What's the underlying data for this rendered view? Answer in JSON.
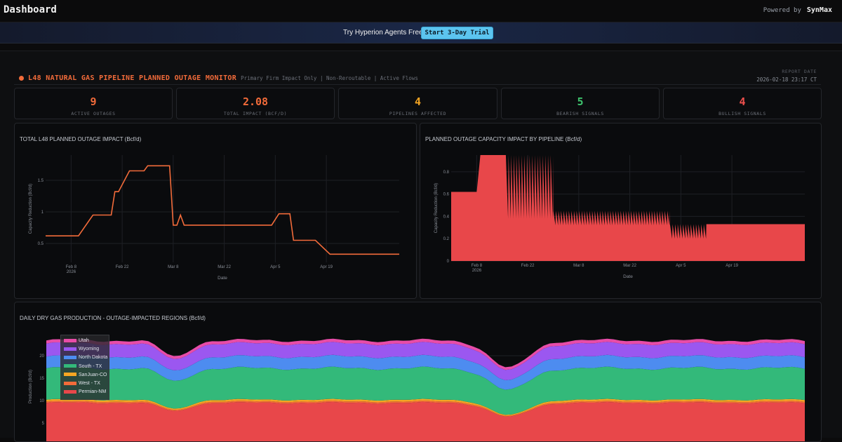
{
  "header": {
    "title": "Dashboard",
    "powered_by": "Powered by",
    "brand": "SynMax"
  },
  "banner": {
    "text": "Try Hyperion Agents Free",
    "button_label": "Start 3-Day Trial"
  },
  "monitor": {
    "title": "L48 NATURAL GAS PIPELINE PLANNED OUTAGE MONITOR",
    "subtitle": "Primary Firm Impact Only | Non-Reroutable | Active Flows",
    "report_date_label": "REPORT DATE",
    "report_date": "2026-02-18 23:17 CT"
  },
  "stats": [
    {
      "value": "9",
      "label": "ACTIVE OUTAGES",
      "color": "#f26b3a"
    },
    {
      "value": "2.08",
      "label": "TOTAL IMPACT (BCF/D)",
      "color": "#f26b3a"
    },
    {
      "value": "4",
      "label": "PIPELINES AFFECTED",
      "color": "#f5a623"
    },
    {
      "value": "5",
      "label": "BEARISH SIGNALS",
      "color": "#3ec46d"
    },
    {
      "value": "4",
      "label": "BULLISH SIGNALS",
      "color": "#f0504d"
    }
  ],
  "colors": {
    "line": "#f26b3a",
    "area": "#e8474a"
  },
  "chart_data": [
    {
      "type": "line",
      "title": "TOTAL L48 PLANNED OUTAGE IMPACT (Bcf/d)",
      "xlabel": "Date",
      "ylabel": "Capacity Reduction (Bcf/d)",
      "x_ticks": [
        "Feb 8\n2026",
        "Feb 22",
        "Mar 8",
        "Mar 22",
        "Apr 5",
        "Apr 19"
      ],
      "y_ticks": [
        0.5,
        1,
        1.5
      ],
      "ylim": [
        0.2,
        1.9
      ],
      "grid": true,
      "x_days": [
        0,
        9,
        13,
        18,
        19,
        20,
        23,
        27,
        28,
        34,
        35,
        36,
        37,
        38,
        39,
        62,
        64,
        67,
        68,
        73,
        74,
        78,
        97
      ],
      "x_day_origin": "Feb 1",
      "y": [
        0.62,
        0.62,
        0.95,
        0.95,
        1.32,
        1.32,
        1.65,
        1.65,
        1.73,
        1.73,
        0.79,
        0.79,
        0.95,
        0.79,
        0.79,
        0.79,
        0.97,
        0.97,
        0.55,
        0.55,
        0.55,
        0.33,
        0.33
      ]
    },
    {
      "type": "area",
      "title": "PLANNED OUTAGE CAPACITY IMPACT BY PIPELINE (Bcf/d)",
      "xlabel": "Date",
      "ylabel": "Capacity Reduction (Bcf/d)",
      "x_ticks": [
        "Feb 8\n2026",
        "Feb 22",
        "Mar 8",
        "Mar 22",
        "Apr 5",
        "Apr 19"
      ],
      "y_ticks": [
        0,
        0.2,
        0.4,
        0.6,
        0.8
      ],
      "ylim": [
        0,
        0.95
      ],
      "grid": true,
      "segments": [
        {
          "from_day": 0,
          "to_day": 7,
          "value": 0.62
        },
        {
          "from_day": 8,
          "to_day": 15,
          "value": 0.95
        },
        {
          "from_day": 15,
          "to_day": 28,
          "value": 0.95,
          "sawtooth_low": 0.38
        },
        {
          "from_day": 28,
          "to_day": 60,
          "value": 0.45,
          "sawtooth_low": 0.32
        },
        {
          "from_day": 60,
          "to_day": 70,
          "value": 0.33,
          "sawtooth_low": 0.2
        },
        {
          "from_day": 70,
          "to_day": 97,
          "value": 0.33
        }
      ]
    },
    {
      "type": "area",
      "title": "DAILY DRY GAS PRODUCTION - OUTAGE-IMPACTED REGIONS (Bcf/d)",
      "ylabel": "Production (Bcf/d)",
      "y_ticks": [
        5,
        10,
        15,
        20
      ],
      "ylim": [
        0,
        25
      ],
      "legend": "top-left",
      "series": [
        {
          "name": "Permian-NM",
          "color": "#e8474a",
          "base": 9.5,
          "dip": 3.2
        },
        {
          "name": "West - TX",
          "color": "#f26b3a",
          "base": 0.3,
          "dip": 0.1
        },
        {
          "name": "SanJuan-CO",
          "color": "#f5a623",
          "base": 0.4,
          "dip": 0.2
        },
        {
          "name": "South - TX",
          "color": "#33b97a",
          "base": 7.0,
          "dip": 1.5
        },
        {
          "name": "North Dakota",
          "color": "#4d8cf0",
          "base": 2.6,
          "dip": 0.5
        },
        {
          "name": "Wyoming",
          "color": "#9b57f0",
          "base": 2.9,
          "dip": 0.6
        },
        {
          "name": "Utah",
          "color": "#e84ca8",
          "base": 0.7,
          "dip": 0.1
        }
      ]
    }
  ]
}
